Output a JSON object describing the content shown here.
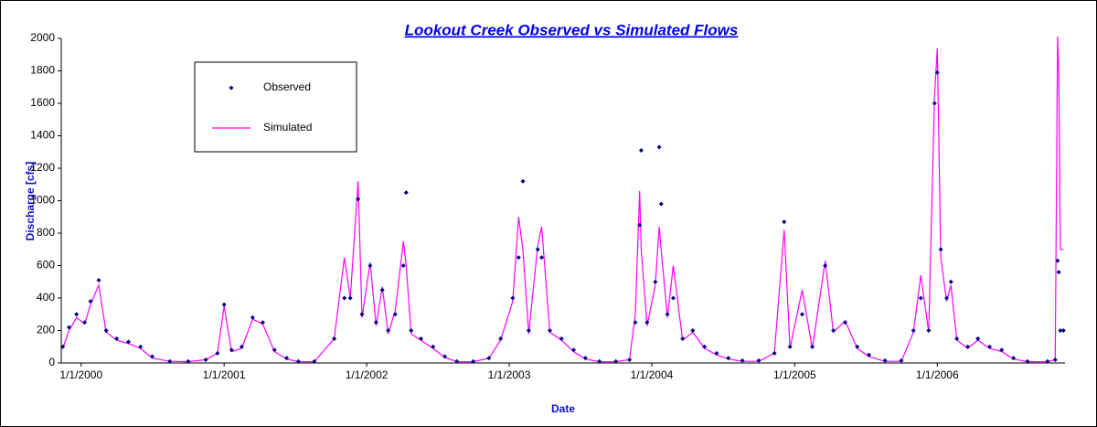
{
  "chart_data": {
    "type": "timeseries",
    "title": "Lookout Creek Observed vs Simulated Flows",
    "x_label": "Date",
    "y_label": "Discharge [cfs]",
    "xlim": [
      "1999-11-11",
      "2006-11-24"
    ],
    "xticks": [
      {
        "value": "2000-01-01",
        "label": "1/1/2000"
      },
      {
        "value": "2001-01-01",
        "label": "1/1/2001"
      },
      {
        "value": "2002-01-01",
        "label": "1/1/2002"
      },
      {
        "value": "2003-01-01",
        "label": "1/1/2003"
      },
      {
        "value": "2004-01-01",
        "label": "1/1/2004"
      },
      {
        "value": "2005-01-01",
        "label": "1/1/2005"
      },
      {
        "value": "2006-01-01",
        "label": "1/1/2006"
      }
    ],
    "ylim": [
      0,
      2000
    ],
    "yticks": [
      0,
      200,
      400,
      600,
      800,
      1000,
      1200,
      1400,
      1600,
      1800,
      2000
    ],
    "x": [
      "1999-11-15",
      "1999-12-01",
      "1999-12-20",
      "2000-01-10",
      "2000-01-25",
      "2000-02-15",
      "2000-03-05",
      "2000-04-01",
      "2000-05-01",
      "2000-06-01",
      "2000-07-01",
      "2000-08-15",
      "2000-10-01",
      "2000-11-15",
      "2000-12-15",
      "2001-01-01",
      "2001-01-20",
      "2001-02-15",
      "2001-03-15",
      "2001-04-10",
      "2001-05-10",
      "2001-06-10",
      "2001-07-10",
      "2001-08-20",
      "2001-10-10",
      "2001-11-05",
      "2001-11-20",
      "2001-12-10",
      "2001-12-20",
      "2002-01-10",
      "2002-01-25",
      "2002-02-10",
      "2002-02-25",
      "2002-03-15",
      "2002-04-05",
      "2002-04-12",
      "2002-04-25",
      "2002-05-20",
      "2002-06-20",
      "2002-07-20",
      "2002-08-20",
      "2002-10-01",
      "2002-11-10",
      "2002-12-10",
      "2003-01-10",
      "2003-01-25",
      "2003-02-05",
      "2003-02-20",
      "2003-03-15",
      "2003-03-25",
      "2003-04-15",
      "2003-05-15",
      "2003-06-15",
      "2003-07-15",
      "2003-08-20",
      "2003-10-01",
      "2003-11-05",
      "2003-11-20",
      "2003-12-01",
      "2003-12-05",
      "2003-12-20",
      "2004-01-10",
      "2004-01-20",
      "2004-01-25",
      "2004-02-10",
      "2004-02-25",
      "2004-03-20",
      "2004-04-15",
      "2004-05-15",
      "2004-06-15",
      "2004-07-15",
      "2004-08-20",
      "2004-10-01",
      "2004-11-10",
      "2004-12-05",
      "2004-12-20",
      "2005-01-20",
      "2005-02-15",
      "2005-03-20",
      "2005-04-10",
      "2005-05-10",
      "2005-06-10",
      "2005-07-10",
      "2005-08-20",
      "2005-10-01",
      "2005-11-01",
      "2005-11-20",
      "2005-12-10",
      "2005-12-25",
      "2006-01-01",
      "2006-01-10",
      "2006-01-25",
      "2006-02-05",
      "2006-02-20",
      "2006-03-20",
      "2006-04-15",
      "2006-05-15",
      "2006-06-15",
      "2006-07-15",
      "2006-08-20",
      "2006-10-10",
      "2006-10-30",
      "2006-11-05",
      "2006-11-08",
      "2006-11-12",
      "2006-11-20"
    ],
    "series": [
      {
        "name": "Observed",
        "color": "#000080",
        "style": "markers",
        "values": [
          100,
          220,
          300,
          250,
          380,
          510,
          200,
          150,
          130,
          100,
          40,
          10,
          10,
          20,
          60,
          360,
          80,
          100,
          280,
          250,
          80,
          30,
          10,
          10,
          150,
          400,
          400,
          1010,
          300,
          600,
          250,
          450,
          200,
          300,
          600,
          1050,
          200,
          150,
          100,
          40,
          10,
          10,
          30,
          150,
          400,
          650,
          1120,
          200,
          700,
          650,
          200,
          150,
          80,
          30,
          10,
          10,
          20,
          250,
          850,
          1310,
          250,
          500,
          1330,
          980,
          300,
          400,
          150,
          200,
          100,
          60,
          30,
          15,
          15,
          60,
          870,
          100,
          300,
          100,
          600,
          200,
          250,
          100,
          50,
          15,
          15,
          200,
          400,
          200,
          1600,
          1790,
          700,
          400,
          500,
          150,
          100,
          150,
          100,
          80,
          30,
          10,
          10,
          20,
          630,
          560,
          200,
          200
        ]
      },
      {
        "name": "Simulated",
        "color": "#ff00ff",
        "style": "line",
        "values": [
          90,
          200,
          280,
          240,
          360,
          480,
          190,
          140,
          120,
          90,
          30,
          10,
          8,
          20,
          60,
          350,
          70,
          90,
          270,
          240,
          70,
          25,
          8,
          8,
          150,
          650,
          400,
          1120,
          280,
          620,
          230,
          470,
          180,
          320,
          750,
          600,
          180,
          140,
          90,
          35,
          8,
          8,
          30,
          140,
          380,
          900,
          700,
          180,
          720,
          840,
          190,
          140,
          70,
          25,
          8,
          8,
          20,
          300,
          1060,
          700,
          230,
          480,
          840,
          700,
          280,
          600,
          140,
          190,
          90,
          50,
          25,
          10,
          10,
          60,
          820,
          90,
          450,
          90,
          630,
          190,
          260,
          90,
          40,
          10,
          10,
          190,
          540,
          190,
          1650,
          1940,
          650,
          380,
          480,
          140,
          90,
          140,
          90,
          70,
          25,
          8,
          8,
          20,
          2010,
          1790,
          700,
          700
        ]
      }
    ],
    "legend_position": "upper-left"
  }
}
